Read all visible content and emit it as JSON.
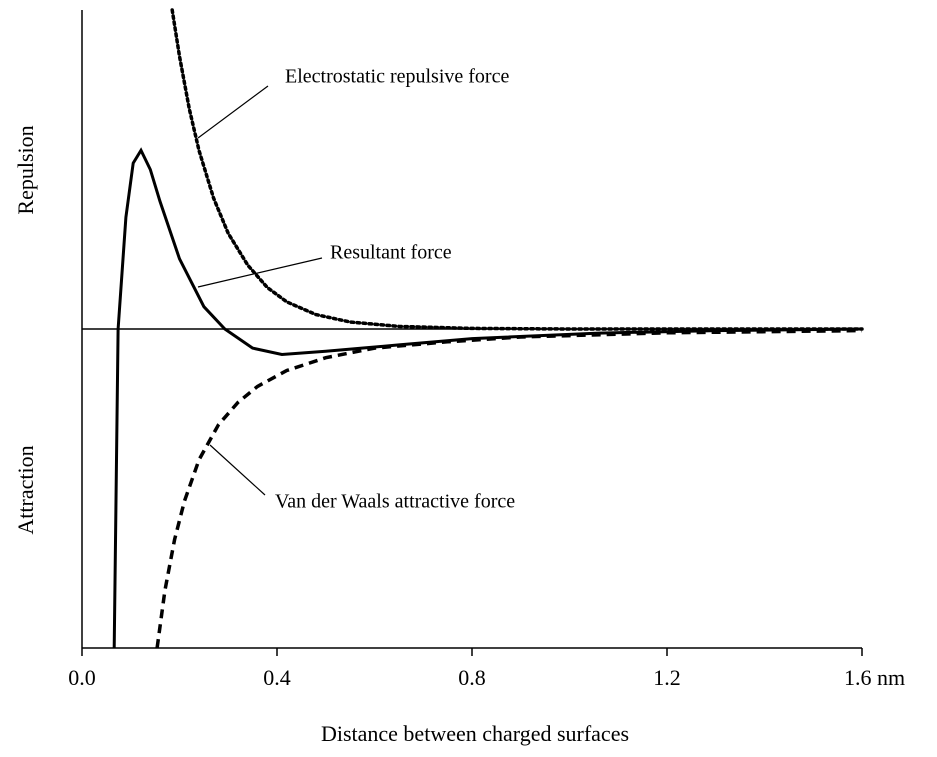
{
  "chart_data": {
    "type": "line",
    "xlabel": "Distance between charged surfaces",
    "ylabels": [
      "Repulsion",
      "Attraction"
    ],
    "xlim": [
      0,
      1.6
    ],
    "ylim": [
      -1,
      1
    ],
    "xticks": [
      {
        "value": 0,
        "label": "0.0"
      },
      0.4,
      0.8,
      1.2,
      {
        "value": 1.6,
        "label": "1.6 nm"
      }
    ],
    "annotations": [
      "Electrostatic repulsive force",
      "Resultant force",
      "Van der Waals attractive force"
    ],
    "series": [
      {
        "name": "Electrostatic repulsive force",
        "color": "#000000",
        "dash": "dotted",
        "x": [
          0.185,
          0.2,
          0.22,
          0.24,
          0.27,
          0.3,
          0.34,
          0.38,
          0.42,
          0.48,
          0.55,
          0.65,
          0.8,
          1.0,
          1.6
        ],
        "values": [
          1,
          0.855,
          0.69,
          0.56,
          0.41,
          0.3,
          0.2,
          0.13,
          0.085,
          0.045,
          0.022,
          0.008,
          0.002,
          0,
          0
        ]
      },
      {
        "name": "Resultant force",
        "color": "#000000",
        "dash": "solid",
        "x": [
          0.066,
          0.074,
          0.09,
          0.105,
          0.121,
          0.14,
          0.16,
          0.2,
          0.25,
          0.293,
          0.35,
          0.41,
          0.5,
          0.65,
          0.8,
          1.06,
          1.3,
          1.6
        ],
        "values": [
          -1,
          0,
          0.35,
          0.52,
          0.56,
          0.5,
          0.4,
          0.22,
          0.07,
          0,
          -0.06,
          -0.08,
          -0.07,
          -0.05,
          -0.03,
          -0.013,
          -0.005,
          0
        ]
      },
      {
        "name": "Van der Waals attractive force",
        "color": "#000000",
        "dash": "dashed",
        "x": [
          0.154,
          0.17,
          0.19,
          0.21,
          0.24,
          0.28,
          0.32,
          0.36,
          0.42,
          0.5,
          0.6,
          0.75,
          0.9,
          1.2,
          1.6
        ],
        "values": [
          -1,
          -0.82,
          -0.66,
          -0.54,
          -0.41,
          -0.3,
          -0.23,
          -0.18,
          -0.13,
          -0.09,
          -0.06,
          -0.04,
          -0.025,
          -0.012,
          -0.005
        ]
      }
    ]
  }
}
